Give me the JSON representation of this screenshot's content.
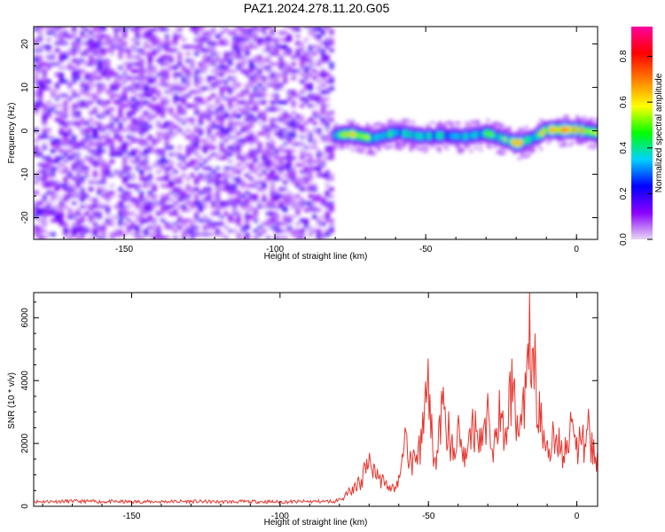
{
  "figure_title": "PAZ1.2024.278.11.20.G05",
  "chart_data": [
    {
      "type": "heatmap",
      "title": "PAZ1.2024.278.11.20.G05",
      "xlabel": "Height of straight line (km)",
      "ylabel": "Frequency (Hz)",
      "xlim": [
        -180,
        7
      ],
      "ylim": [
        -25,
        24
      ],
      "xticks": [
        -150,
        -100,
        -50,
        0
      ],
      "yticks": [
        -20,
        -10,
        0,
        10,
        20
      ],
      "colorbar": {
        "label": "Normalized spectral amplitude",
        "range": [
          0,
          0.93
        ],
        "ticks": [
          "0.0",
          "0.2",
          "0.4",
          "0.6",
          "0.8"
        ],
        "tick_values": [
          0,
          0.2,
          0.4,
          0.6,
          0.8
        ],
        "colormap": "rainbow",
        "colors": [
          "#e8d8f4",
          "#8a00ff",
          "#0000ff",
          "#00d2ff",
          "#00ff00",
          "#ffff00",
          "#ff7f00",
          "#ff0000",
          "#ff00a0"
        ]
      },
      "regions": [
        {
          "x": [
            -180,
            -81
          ],
          "y": [
            -25,
            24
          ],
          "level": 0.08,
          "description": "scattered low-amplitude noise"
        },
        {
          "x": [
            -81,
            7
          ],
          "y": [
            -4,
            3
          ],
          "level": 0.4,
          "description": "signal band near 0 Hz"
        }
      ],
      "signal_track": {
        "x": [
          -81,
          -75,
          -68,
          -60,
          -52,
          -45,
          -38,
          -30,
          -25,
          -20,
          -15,
          -10,
          -5,
          0,
          7
        ],
        "y": [
          -1.3,
          -1.0,
          -2.0,
          -0.6,
          -1.5,
          -1.3,
          -1.6,
          -0.8,
          -2.0,
          -3.2,
          -2.0,
          0.0,
          0.0,
          0.0,
          -0.8
        ],
        "peak_amplitude": [
          0.35,
          0.75,
          0.55,
          0.45,
          0.5,
          0.45,
          0.45,
          0.5,
          0.6,
          0.75,
          0.45,
          0.75,
          0.85,
          0.8,
          0.7
        ]
      }
    },
    {
      "type": "line",
      "xlabel": "Height of straight line (km)",
      "ylabel": "SNR (10 * v/v)",
      "xlim": [
        -183,
        7
      ],
      "ylim": [
        0,
        6800
      ],
      "xticks": [
        -150,
        -100,
        -50,
        0
      ],
      "yticks": [
        0,
        2000,
        4000,
        6000
      ],
      "line_color": "#e8352e",
      "series": [
        {
          "x": [
            -183,
            -170,
            -160,
            -150,
            -140,
            -130,
            -120,
            -110,
            -100,
            -90,
            -82,
            -80,
            -78,
            -75,
            -72,
            -70,
            -68,
            -65,
            -62,
            -60,
            -58,
            -55,
            -52,
            -50,
            -48,
            -45,
            -42,
            -40,
            -38,
            -35,
            -32,
            -30,
            -28,
            -26,
            -24,
            -22,
            -20,
            -18,
            -16,
            -15,
            -14,
            -12,
            -10,
            -8,
            -6,
            -4,
            -2,
            0,
            2,
            4,
            7
          ],
          "y": [
            150,
            160,
            150,
            140,
            150,
            155,
            140,
            150,
            140,
            150,
            160,
            250,
            400,
            700,
            1200,
            1700,
            1300,
            900,
            700,
            1000,
            2500,
            1800,
            3000,
            4700,
            1500,
            3800,
            2300,
            2900,
            1900,
            3100,
            2500,
            3600,
            2000,
            3700,
            2500,
            4700,
            2900,
            3800,
            6800,
            5000,
            5500,
            3300,
            2100,
            2700,
            2500,
            2200,
            3000,
            2200,
            2600,
            3100,
            1700
          ]
        }
      ]
    }
  ]
}
